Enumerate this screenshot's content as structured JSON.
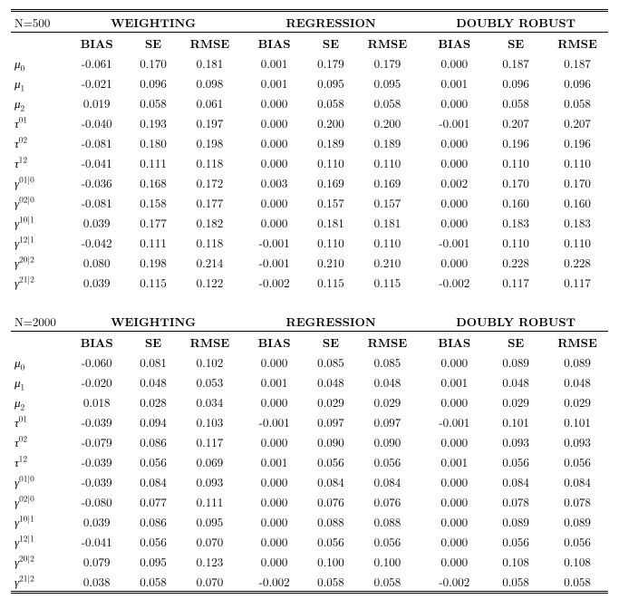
{
  "methods": [
    "WEIGHTING",
    "REGRESSION",
    "DOUBLY ROBUST"
  ],
  "cols": [
    "BIAS",
    "SE",
    "RMSE"
  ],
  "params": [
    {
      "kind": "mu",
      "sub": "0"
    },
    {
      "kind": "mu",
      "sub": "1"
    },
    {
      "kind": "mu",
      "sub": "2"
    },
    {
      "kind": "tau",
      "sup": "01"
    },
    {
      "kind": "tau",
      "sup": "02"
    },
    {
      "kind": "tau",
      "sup": "12"
    },
    {
      "kind": "gam",
      "sup": "01|0"
    },
    {
      "kind": "gam",
      "sup": "02|0"
    },
    {
      "kind": "gam",
      "sup": "10|1"
    },
    {
      "kind": "gam",
      "sup": "12|1"
    },
    {
      "kind": "gam",
      "sup": "20|2"
    },
    {
      "kind": "gam",
      "sup": "21|2"
    }
  ],
  "blocks": [
    {
      "n_label": "N=500",
      "rows": [
        [
          "-0.061",
          "0.170",
          "0.181",
          "0.001",
          "0.179",
          "0.179",
          "0.000",
          "0.187",
          "0.187"
        ],
        [
          "-0.021",
          "0.096",
          "0.098",
          "0.001",
          "0.095",
          "0.095",
          "0.001",
          "0.096",
          "0.096"
        ],
        [
          "0.019",
          "0.058",
          "0.061",
          "0.000",
          "0.058",
          "0.058",
          "0.000",
          "0.058",
          "0.058"
        ],
        [
          "-0.040",
          "0.193",
          "0.197",
          "0.000",
          "0.200",
          "0.200",
          "-0.001",
          "0.207",
          "0.207"
        ],
        [
          "-0.081",
          "0.180",
          "0.198",
          "0.000",
          "0.189",
          "0.189",
          "0.000",
          "0.196",
          "0.196"
        ],
        [
          "-0.041",
          "0.111",
          "0.118",
          "0.000",
          "0.110",
          "0.110",
          "0.000",
          "0.110",
          "0.110"
        ],
        [
          "-0.036",
          "0.168",
          "0.172",
          "0.003",
          "0.169",
          "0.169",
          "0.002",
          "0.170",
          "0.170"
        ],
        [
          "-0.081",
          "0.158",
          "0.177",
          "0.000",
          "0.157",
          "0.157",
          "0.000",
          "0.160",
          "0.160"
        ],
        [
          "0.039",
          "0.177",
          "0.182",
          "0.000",
          "0.181",
          "0.181",
          "0.000",
          "0.183",
          "0.183"
        ],
        [
          "-0.042",
          "0.111",
          "0.118",
          "-0.001",
          "0.110",
          "0.110",
          "-0.001",
          "0.110",
          "0.110"
        ],
        [
          "0.080",
          "0.198",
          "0.214",
          "-0.001",
          "0.210",
          "0.210",
          "0.000",
          "0.228",
          "0.228"
        ],
        [
          "0.039",
          "0.115",
          "0.122",
          "-0.002",
          "0.115",
          "0.115",
          "-0.002",
          "0.117",
          "0.117"
        ]
      ]
    },
    {
      "n_label": "N=2000",
      "rows": [
        [
          "-0.060",
          "0.081",
          "0.102",
          "0.000",
          "0.085",
          "0.085",
          "0.000",
          "0.089",
          "0.089"
        ],
        [
          "-0.020",
          "0.048",
          "0.053",
          "0.001",
          "0.048",
          "0.048",
          "0.001",
          "0.048",
          "0.048"
        ],
        [
          "0.018",
          "0.028",
          "0.034",
          "0.000",
          "0.029",
          "0.029",
          "0.000",
          "0.029",
          "0.029"
        ],
        [
          "-0.039",
          "0.094",
          "0.103",
          "-0.001",
          "0.097",
          "0.097",
          "-0.001",
          "0.101",
          "0.101"
        ],
        [
          "-0.079",
          "0.086",
          "0.117",
          "0.000",
          "0.090",
          "0.090",
          "0.000",
          "0.093",
          "0.093"
        ],
        [
          "-0.039",
          "0.056",
          "0.069",
          "0.001",
          "0.056",
          "0.056",
          "0.001",
          "0.056",
          "0.056"
        ],
        [
          "-0.039",
          "0.084",
          "0.093",
          "0.000",
          "0.084",
          "0.084",
          "0.000",
          "0.084",
          "0.084"
        ],
        [
          "-0.080",
          "0.077",
          "0.111",
          "0.000",
          "0.076",
          "0.076",
          "0.000",
          "0.078",
          "0.078"
        ],
        [
          "0.039",
          "0.086",
          "0.095",
          "0.000",
          "0.088",
          "0.088",
          "0.000",
          "0.089",
          "0.089"
        ],
        [
          "-0.041",
          "0.056",
          "0.070",
          "0.000",
          "0.056",
          "0.056",
          "0.000",
          "0.056",
          "0.056"
        ],
        [
          "0.079",
          "0.095",
          "0.123",
          "0.000",
          "0.100",
          "0.100",
          "0.000",
          "0.108",
          "0.108"
        ],
        [
          "0.038",
          "0.058",
          "0.070",
          "-0.002",
          "0.058",
          "0.058",
          "-0.002",
          "0.058",
          "0.058"
        ]
      ]
    }
  ]
}
